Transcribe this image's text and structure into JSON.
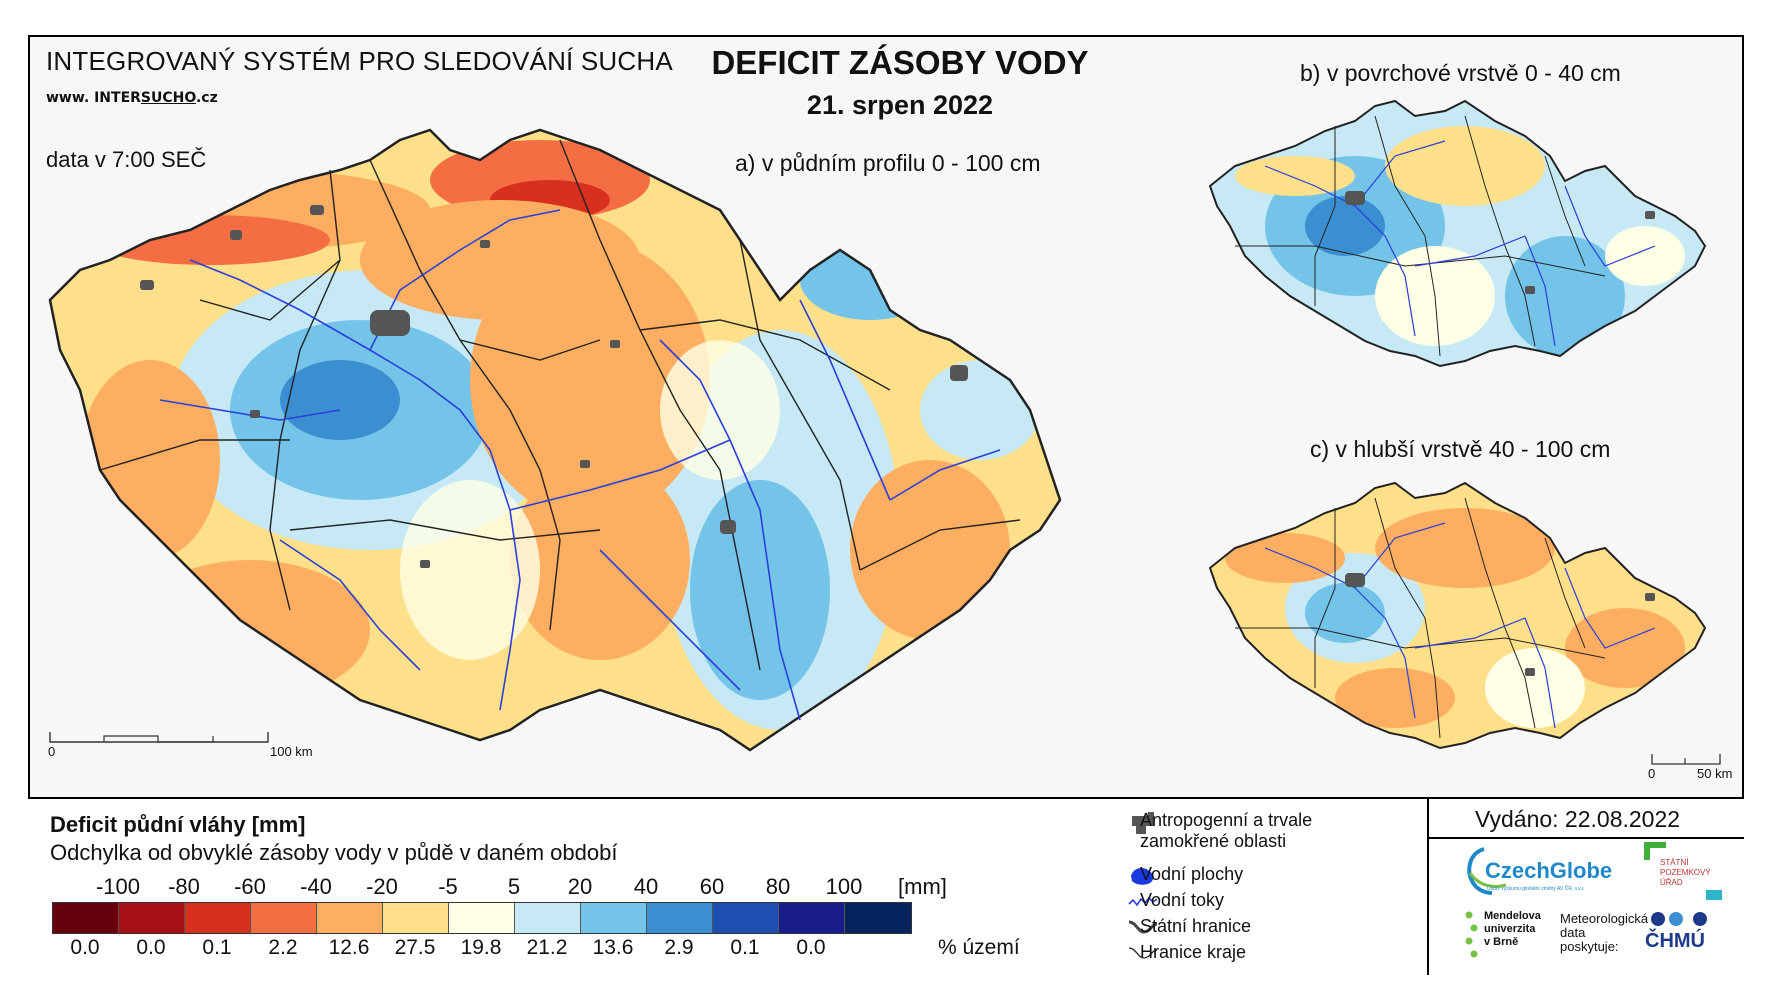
{
  "header": {
    "system_title": "INTEGROVANÝ SYSTÉM PRO SLEDOVÁNÍ SUCHA",
    "website_prefix": "www. INTER",
    "website_highlight": "SUCHO",
    "website_suffix": ".cz",
    "data_time": "data v 7:00 SEČ",
    "main_title": "DEFICIT ZÁSOBY VODY",
    "main_date": "21. srpen 2022"
  },
  "maps": {
    "a_title": "a) v půdním profilu 0 - 100 cm",
    "b_title": "b) v povrchové vrstvě 0 - 40 cm",
    "c_title": "c) v hlubší vrstvě 40 - 100 cm",
    "scale_main": {
      "zero": "0",
      "end": "100 km"
    },
    "scale_small": {
      "zero": "0",
      "end": "50 km"
    }
  },
  "legend": {
    "title": "Deficit půdní vláhy  [mm]",
    "subtitle": "Odchylka od obvyklé zásoby vody v půdě v daném období",
    "unit": "[mm]",
    "pct_label": "% území",
    "breaks": [
      "-100",
      "-80",
      "-60",
      "-40",
      "-20",
      "-5",
      "5",
      "20",
      "40",
      "60",
      "80",
      "100"
    ],
    "classes": [
      {
        "color": "#67000d",
        "pct": "0.0"
      },
      {
        "color": "#a50f15",
        "pct": "0.0"
      },
      {
        "color": "#d7301f",
        "pct": "0.1"
      },
      {
        "color": "#f46d43",
        "pct": "2.2"
      },
      {
        "color": "#fdae61",
        "pct": "12.6"
      },
      {
        "color": "#fee08b",
        "pct": "27.5"
      },
      {
        "color": "#ffffe5",
        "pct": "19.8"
      },
      {
        "color": "#c6e9f5",
        "pct": "21.2"
      },
      {
        "color": "#74c3e8",
        "pct": "13.6"
      },
      {
        "color": "#3b8fd1",
        "pct": "2.9"
      },
      {
        "color": "#1c4fb0",
        "pct": "0.1"
      },
      {
        "color": "#1a1d8c",
        "pct": "0.0"
      },
      {
        "color": "#08245e",
        "pct": ""
      }
    ]
  },
  "symbols": {
    "urban": "Antropogenní a trvale zamokřené oblasti",
    "water_bodies": "Vodní plochy",
    "rivers": "Vodní toky",
    "state_border": "Státní hranice",
    "region_border": "Hranice kraje"
  },
  "footer": {
    "issued": "Vydáno: 22.08.2022",
    "czechglobe": "CzechGlobe",
    "czechglobe_sub": "Ústav výzkumu globální změny AV ČR, v.v.i.",
    "spu_line1": "STÁTNÍ",
    "spu_line2": "POZEMKOVÝ",
    "spu_line3": "ÚŘAD",
    "mendel_line1": "Mendelova",
    "mendel_line2": "univerzita",
    "mendel_line3": "v Brně",
    "chmu_text1": "Meteorologická",
    "chmu_text2": "data",
    "chmu_text3": "poskytuje:",
    "chmu": "ČHMÚ"
  },
  "colors": {
    "river": "#2b3fd9",
    "urban": "#555555",
    "border": "#222222"
  }
}
